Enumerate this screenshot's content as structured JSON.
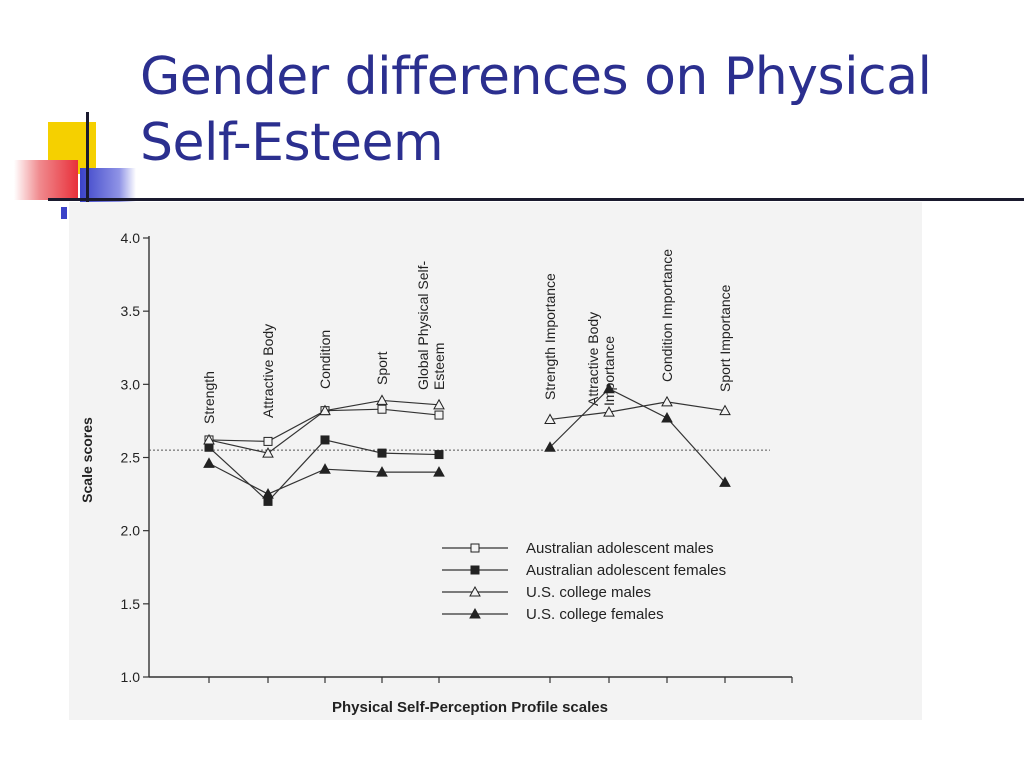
{
  "slide": {
    "title_line1": "Gender differences on Physical",
    "title_line2": "Self-Esteem",
    "accent_colors": {
      "title": "#2b2f8f",
      "square_yellow": "#f5d000",
      "square_red": "#e8303a",
      "square_blue": "#3b43c8"
    }
  },
  "chart_data": {
    "type": "line",
    "xlabel": "Physical Self-Perception Profile scales",
    "ylabel": "Scale scores",
    "ylim": [
      1.0,
      4.0
    ],
    "yticks": [
      "1.0",
      "1.5",
      "2.0",
      "2.5",
      "3.0",
      "3.5",
      "4.0"
    ],
    "grid": false,
    "reference_line": 2.55,
    "legend_position": "center-right",
    "categories": [
      "Strength",
      "Attractive Body",
      "Condition",
      "Sport",
      "Global Physical Self-Esteem",
      "Strength Importance",
      "Attractive Body Importance",
      "Condition Importance",
      "Sport Importance"
    ],
    "category_label_lines": [
      [
        "Strength"
      ],
      [
        "Attractive Body"
      ],
      [
        "Condition"
      ],
      [
        "Sport"
      ],
      [
        "Global Physical Self-",
        "Esteem"
      ],
      [
        "Strength Importance"
      ],
      [
        "Attractive Body",
        "Importance"
      ],
      [
        "Condition Importance"
      ],
      [
        "Sport Importance"
      ]
    ],
    "series": [
      {
        "name": "Australian adolescent males",
        "marker": "square-open",
        "values": [
          2.62,
          2.61,
          2.82,
          2.83,
          2.79,
          null,
          null,
          null,
          null
        ]
      },
      {
        "name": "Australian adolescent females",
        "marker": "square-filled",
        "values": [
          2.57,
          2.2,
          2.62,
          2.53,
          2.52,
          null,
          null,
          null,
          null
        ]
      },
      {
        "name": "U.S. college males",
        "marker": "triangle-open",
        "values": [
          2.62,
          2.53,
          2.82,
          2.89,
          2.86,
          2.76,
          2.81,
          2.88,
          2.82
        ]
      },
      {
        "name": "U.S. college females",
        "marker": "triangle-filled",
        "values": [
          2.46,
          2.25,
          2.42,
          2.4,
          2.4,
          2.57,
          2.97,
          2.77,
          2.33
        ]
      }
    ]
  }
}
